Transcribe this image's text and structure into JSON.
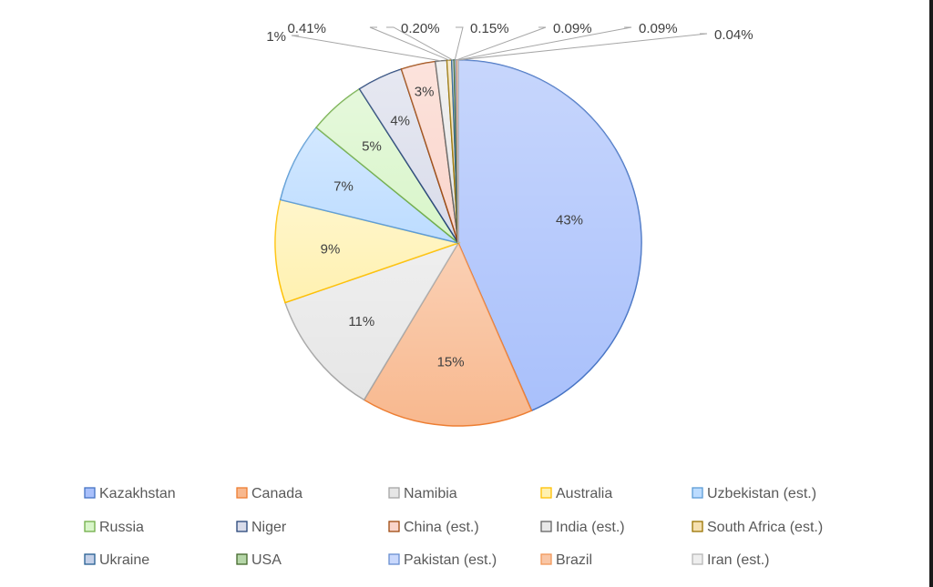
{
  "chart_data": {
    "type": "pie",
    "title": "",
    "legend_position": "bottom",
    "series": [
      {
        "slices": [
          {
            "name": "Kazakhstan",
            "value": 43,
            "label": "43%",
            "color": "#a9c0fb"
          },
          {
            "name": "Canada",
            "value": 15,
            "label": "15%",
            "color": "#f8b88e"
          },
          {
            "name": "Namibia",
            "value": 11,
            "label": "11%",
            "color": "#e6e6e6"
          },
          {
            "name": "Australia",
            "value": 9,
            "label": "9%",
            "color": "#fff1b0"
          },
          {
            "name": "Uzbekistan (est.)",
            "value": 7,
            "label": "7%",
            "color": "#bcdcff"
          },
          {
            "name": "Russia",
            "value": 5,
            "label": "5%",
            "color": "#d8f5c9"
          },
          {
            "name": "Niger",
            "value": 4,
            "label": "4%",
            "color": "#d9dcea"
          },
          {
            "name": "China (est.)",
            "value": 3,
            "label": "3%",
            "color": "#fad4ca"
          },
          {
            "name": "India (est.)",
            "value": 1,
            "label": "1%",
            "color": "#e8e8e8"
          },
          {
            "name": "South Africa (est.)",
            "value": 0.41,
            "label": "0.41%",
            "color": "#f5e0b0"
          },
          {
            "name": "Ukraine",
            "value": 0.2,
            "label": "0.20%",
            "color": "#c4d0e8"
          },
          {
            "name": "USA",
            "value": 0.15,
            "label": "0.15%",
            "color": "#b5d6a8"
          },
          {
            "name": "Pakistan (est.)",
            "value": 0.09,
            "label": "0.09%",
            "color": "#c9d8fc"
          },
          {
            "name": "Brazil",
            "value": 0.09,
            "label": "0.09%",
            "color": "#f9c6a6"
          },
          {
            "name": "Iran (est.)",
            "value": 0.04,
            "label": "0.04%",
            "color": "#eeeeee"
          }
        ]
      }
    ],
    "strokes": [
      "#4472c4",
      "#ed7d31",
      "#a5a5a5",
      "#ffc000",
      "#5b9bd5",
      "#70ad47",
      "#264478",
      "#9e480e",
      "#636363",
      "#997300",
      "#255e91",
      "#43682b",
      "#698ed0",
      "#f1975a",
      "#b7b7b7"
    ]
  }
}
